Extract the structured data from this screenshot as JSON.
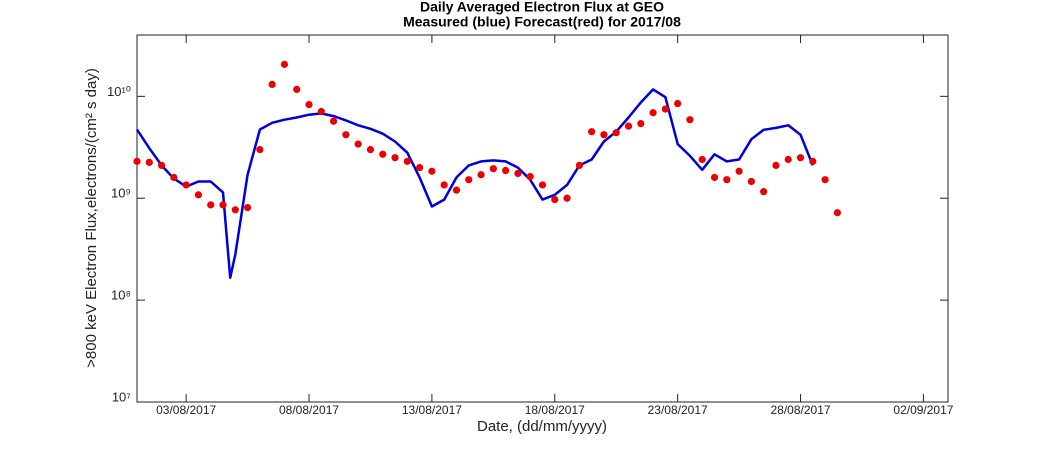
{
  "chart_data": {
    "type": "line",
    "title": "Daily Averaged Electron Flux at GEO",
    "subtitle": "Measured (blue) Forecast(red) for 2017/08",
    "xlabel": "Date, (dd/mm/yyyy)",
    "ylabel": ">800 keV Electron Flux,electrons/(cm² s day)",
    "log_y": true,
    "xlim": [
      "2017-08-01T00:00",
      "2017-09-03T00:00"
    ],
    "xticks": [
      {
        "value": "2017-08-03T00:00",
        "label": "03/08/2017"
      },
      {
        "value": "2017-08-08T00:00",
        "label": "08/08/2017"
      },
      {
        "value": "2017-08-13T00:00",
        "label": "13/08/2017"
      },
      {
        "value": "2017-08-18T00:00",
        "label": "18/08/2017"
      },
      {
        "value": "2017-08-23T00:00",
        "label": "23/08/2017"
      },
      {
        "value": "2017-08-28T00:00",
        "label": "28/08/2017"
      },
      {
        "value": "2017-09-02T00:00",
        "label": "02/09/2017"
      }
    ],
    "ylim": [
      10000000,
      40000000000
    ],
    "yticks": [
      {
        "value": 10000000,
        "label": "10⁷"
      },
      {
        "value": 100000000,
        "label": "10⁸"
      },
      {
        "value": 1000000000,
        "label": "10⁹"
      },
      {
        "value": 10000000000,
        "label": "10¹⁰"
      }
    ],
    "series": [
      {
        "name": "Measured",
        "color": "#0000dd",
        "style": "line",
        "x": [
          "2017-08-01T00:00",
          "2017-08-01T12:00",
          "2017-08-02T00:00",
          "2017-08-02T12:00",
          "2017-08-03T00:00",
          "2017-08-03T12:00",
          "2017-08-04T00:00",
          "2017-08-04T12:00",
          "2017-08-04T19:00",
          "2017-08-05T00:00",
          "2017-08-05T12:00",
          "2017-08-06T00:00",
          "2017-08-06T12:00",
          "2017-08-07T00:00",
          "2017-08-07T12:00",
          "2017-08-08T00:00",
          "2017-08-08T12:00",
          "2017-08-09T00:00",
          "2017-08-09T12:00",
          "2017-08-10T00:00",
          "2017-08-10T12:00",
          "2017-08-11T00:00",
          "2017-08-11T12:00",
          "2017-08-12T00:00",
          "2017-08-12T12:00",
          "2017-08-13T00:00",
          "2017-08-13T12:00",
          "2017-08-14T00:00",
          "2017-08-14T12:00",
          "2017-08-15T00:00",
          "2017-08-15T12:00",
          "2017-08-16T00:00",
          "2017-08-16T12:00",
          "2017-08-17T00:00",
          "2017-08-17T12:00",
          "2017-08-18T00:00",
          "2017-08-18T12:00",
          "2017-08-19T00:00",
          "2017-08-19T12:00",
          "2017-08-20T00:00",
          "2017-08-20T12:00",
          "2017-08-21T00:00",
          "2017-08-21T12:00",
          "2017-08-22T00:00",
          "2017-08-22T12:00",
          "2017-08-23T00:00",
          "2017-08-23T12:00",
          "2017-08-24T00:00",
          "2017-08-24T12:00",
          "2017-08-25T00:00",
          "2017-08-25T12:00",
          "2017-08-26T00:00",
          "2017-08-26T12:00",
          "2017-08-27T00:00",
          "2017-08-27T12:00",
          "2017-08-28T00:00",
          "2017-08-28T12:00"
        ],
        "values": [
          4730000000,
          3100000000,
          2100000000,
          1560000000,
          1300000000,
          1460000000,
          1460000000,
          1140000000,
          166000000,
          280000000,
          1700000000,
          4730000000,
          5500000000,
          5900000000,
          6200000000,
          6600000000,
          6800000000,
          6400000000,
          5800000000,
          5200000000,
          4800000000,
          4300000000,
          3600000000,
          2800000000,
          1600000000,
          830000000,
          970000000,
          1600000000,
          2100000000,
          2300000000,
          2350000000,
          2300000000,
          2000000000,
          1520000000,
          970000000,
          1080000000,
          1350000000,
          2100000000,
          2400000000,
          3600000000,
          4500000000,
          6200000000,
          8700000000,
          11700000000,
          9800000000,
          3400000000,
          2600000000,
          1900000000,
          2700000000,
          2300000000,
          2400000000,
          3800000000,
          4700000000,
          4900000000,
          5200000000,
          4200000000,
          2100000000
        ]
      },
      {
        "name": "Forecast",
        "color": "#ee0000",
        "style": "dots",
        "x": [
          "2017-08-01T00:00",
          "2017-08-01T12:00",
          "2017-08-02T00:00",
          "2017-08-02T12:00",
          "2017-08-03T00:00",
          "2017-08-03T12:00",
          "2017-08-04T00:00",
          "2017-08-04T12:00",
          "2017-08-05T00:00",
          "2017-08-05T12:00",
          "2017-08-06T00:00",
          "2017-08-06T12:00",
          "2017-08-07T00:00",
          "2017-08-07T12:00",
          "2017-08-08T00:00",
          "2017-08-08T12:00",
          "2017-08-09T00:00",
          "2017-08-09T12:00",
          "2017-08-10T00:00",
          "2017-08-10T12:00",
          "2017-08-11T00:00",
          "2017-08-11T12:00",
          "2017-08-12T00:00",
          "2017-08-12T12:00",
          "2017-08-13T00:00",
          "2017-08-13T12:00",
          "2017-08-14T00:00",
          "2017-08-14T12:00",
          "2017-08-15T00:00",
          "2017-08-15T12:00",
          "2017-08-16T00:00",
          "2017-08-16T12:00",
          "2017-08-17T00:00",
          "2017-08-17T12:00",
          "2017-08-18T00:00",
          "2017-08-18T12:00",
          "2017-08-19T00:00",
          "2017-08-19T12:00",
          "2017-08-20T00:00",
          "2017-08-20T12:00",
          "2017-08-21T00:00",
          "2017-08-21T12:00",
          "2017-08-22T00:00",
          "2017-08-22T12:00",
          "2017-08-23T00:00",
          "2017-08-23T12:00",
          "2017-08-24T00:00",
          "2017-08-24T12:00",
          "2017-08-25T00:00",
          "2017-08-25T12:00",
          "2017-08-26T00:00",
          "2017-08-26T12:00",
          "2017-08-27T00:00",
          "2017-08-27T12:00",
          "2017-08-28T00:00",
          "2017-08-28T12:00",
          "2017-08-29T00:00",
          "2017-08-29T12:00"
        ],
        "values": [
          2300000000,
          2250000000,
          2100000000,
          1600000000,
          1350000000,
          1080000000,
          860000000,
          860000000,
          770000000,
          810000000,
          3000000000,
          13100000000,
          20600000000,
          11700000000,
          8300000000,
          7100000000,
          5700000000,
          4200000000,
          3400000000,
          3000000000,
          2700000000,
          2500000000,
          2300000000,
          2000000000,
          1840000000,
          1350000000,
          1200000000,
          1520000000,
          1700000000,
          1950000000,
          1870000000,
          1750000000,
          1630000000,
          1350000000,
          970000000,
          1000000000,
          2100000000,
          4500000000,
          4200000000,
          4400000000,
          5100000000,
          5400000000,
          6900000000,
          7500000000,
          8500000000,
          5900000000,
          2400000000,
          1600000000,
          1520000000,
          1840000000,
          1460000000,
          1160000000,
          2100000000,
          2400000000,
          2500000000,
          2300000000,
          1520000000,
          720000000
        ]
      }
    ]
  }
}
